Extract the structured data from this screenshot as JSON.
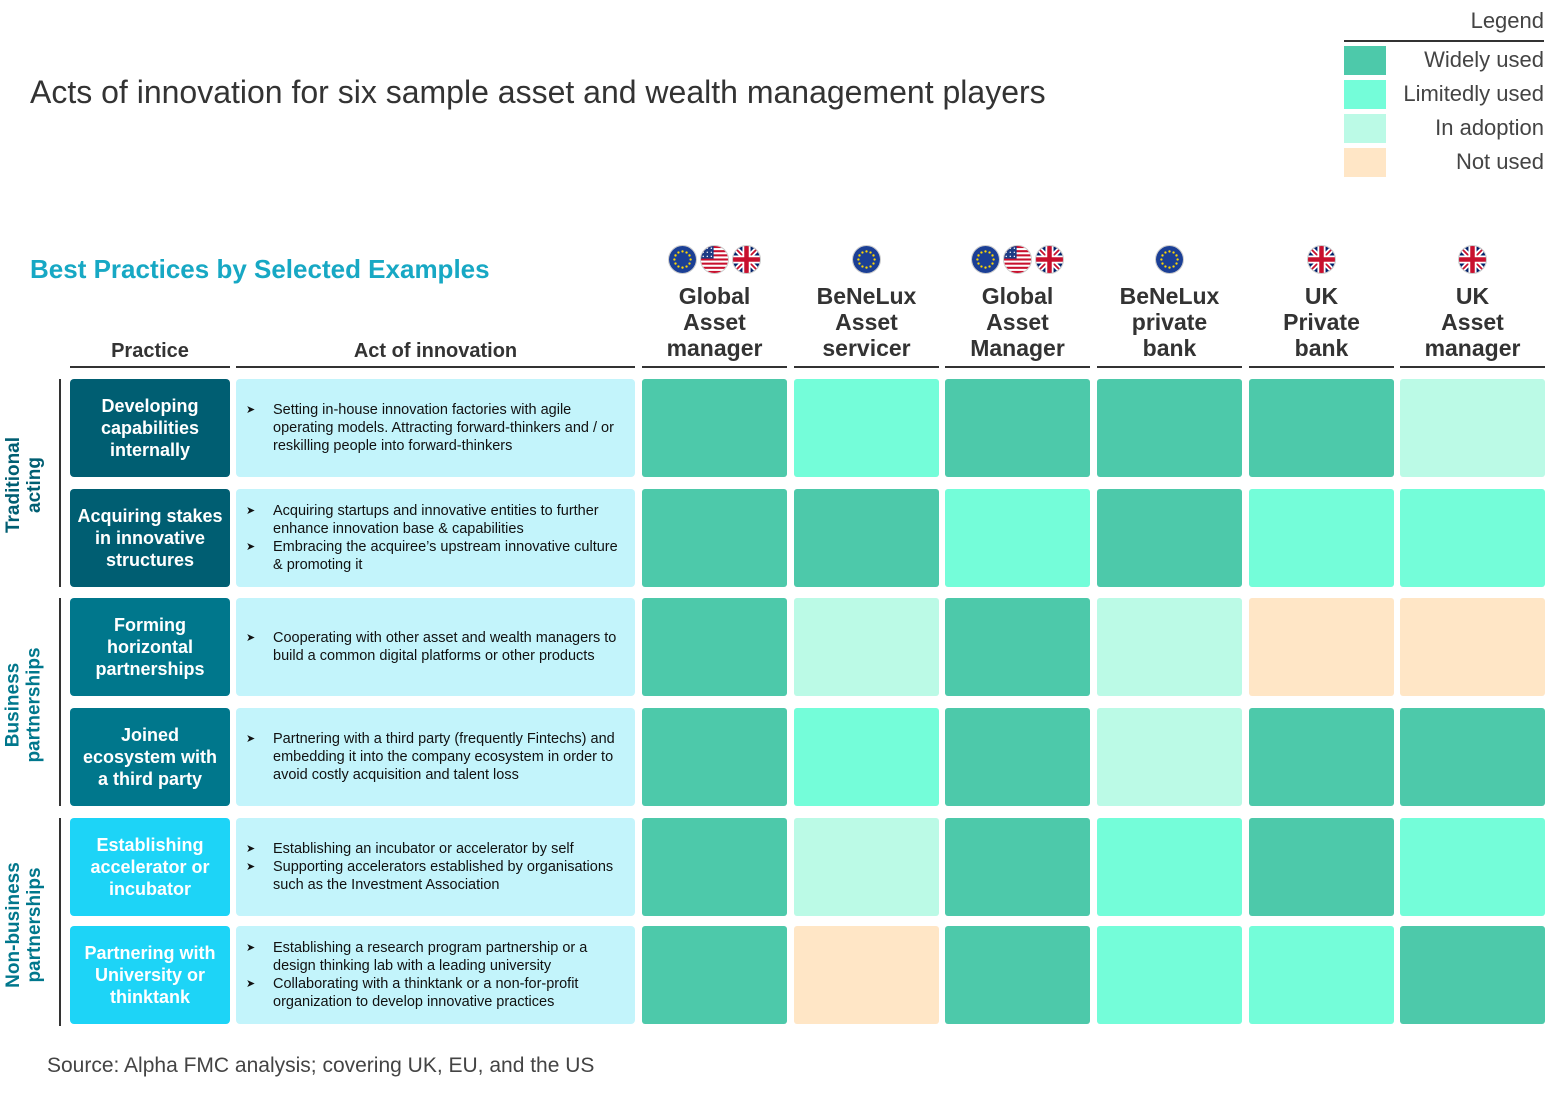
{
  "title": "Acts of innovation for six sample asset and wealth management players",
  "subtitle": "Best Practices by Selected Examples",
  "legend": {
    "title": "Legend",
    "items": [
      {
        "key": "widely",
        "label": "Widely used",
        "color": "#4DC9AA"
      },
      {
        "key": "limited",
        "label": "Limitedly used",
        "color": "#74FDD9"
      },
      {
        "key": "adoption",
        "label": "In adoption",
        "color": "#BBFAE6"
      },
      {
        "key": "notused",
        "label": "Not used",
        "color": "#FFE6C6"
      }
    ]
  },
  "columns": {
    "practice": "Practice",
    "act": "Act of innovation"
  },
  "players": [
    {
      "name": "Global Asset manager",
      "lines": [
        "Global",
        "Asset",
        "manager"
      ],
      "flags": [
        "eu-flag-icon",
        "us-flag-icon",
        "uk-flag-icon"
      ]
    },
    {
      "name": "BeNeLux Asset servicer",
      "lines": [
        "BeNeLux",
        "Asset",
        "servicer"
      ],
      "flags": [
        "eu-flag-icon"
      ]
    },
    {
      "name": "Global Asset Manager",
      "lines": [
        "Global",
        "Asset",
        "Manager"
      ],
      "flags": [
        "eu-flag-icon",
        "us-flag-icon",
        "uk-flag-icon"
      ]
    },
    {
      "name": "BeNeLux private bank",
      "lines": [
        "BeNeLux",
        "private",
        "bank"
      ],
      "flags": [
        "eu-flag-icon"
      ]
    },
    {
      "name": "UK Private bank",
      "lines": [
        "UK",
        "Private",
        "bank"
      ],
      "flags": [
        "uk-flag-icon"
      ]
    },
    {
      "name": "UK Asset manager",
      "lines": [
        "UK",
        "Asset",
        "manager"
      ],
      "flags": [
        "uk-flag-icon"
      ]
    }
  ],
  "groups": [
    {
      "label_lines": [
        "Traditional",
        "acting"
      ],
      "color": "#005E72"
    },
    {
      "label_lines": [
        "Business",
        "partnerships"
      ],
      "color": "#00778C"
    },
    {
      "label_lines": [
        "Non-business",
        "partnerships"
      ],
      "color": "#1DD4F7"
    }
  ],
  "rows": [
    {
      "group": 0,
      "practice": "Developing capabilities internally",
      "practice_color": "#005E72",
      "acts": [
        "Setting in-house innovation factories with agile operating models. Attracting forward-thinkers and / or reskilling people into forward-thinkers"
      ]
    },
    {
      "group": 0,
      "practice": "Acquiring stakes in innovative structures",
      "practice_color": "#005E72",
      "acts": [
        "Acquiring startups and innovative entities to further enhance innovation base & capabilities",
        "Embracing the acquiree’s upstream innovative culture & promoting it"
      ]
    },
    {
      "group": 1,
      "practice": "Forming horizontal partnerships",
      "practice_color": "#00778C",
      "acts": [
        "Cooperating with other asset and wealth managers to build a common digital platforms or other products"
      ]
    },
    {
      "group": 1,
      "practice": "Joined ecosystem with a third party",
      "practice_color": "#00778C",
      "acts": [
        "Partnering with a third party (frequently Fintechs) and embedding it into the company ecosystem in order to avoid costly acquisition and talent loss"
      ]
    },
    {
      "group": 2,
      "practice": "Establishing accelerator or incubator",
      "practice_color": "#1DD4F7",
      "acts": [
        "Establishing an incubator or accelerator by self",
        "Supporting accelerators established by organisations such as the Investment Association"
      ]
    },
    {
      "group": 2,
      "practice": "Partnering with University or thinktank",
      "practice_color": "#1DD4F7",
      "acts": [
        "Establishing a research program partnership or a design thinking lab with a leading university",
        "Collaborating with a thinktank or a non-for-profit organization to develop innovative practices"
      ]
    }
  ],
  "chart_data": {
    "type": "heatmap",
    "title": "Acts of innovation for six sample asset and wealth management players",
    "x": [
      "Global Asset manager",
      "BeNeLux Asset servicer",
      "Global Asset Manager",
      "BeNeLux private bank",
      "UK Private bank",
      "UK Asset manager"
    ],
    "y": [
      "Developing capabilities internally",
      "Acquiring stakes in innovative structures",
      "Forming horizontal partnerships",
      "Joined ecosystem with a third party",
      "Establishing accelerator or incubator",
      "Partnering with University or thinktank"
    ],
    "categories": [
      "Widely used",
      "Limitedly used",
      "In adoption",
      "Not used"
    ],
    "values": [
      [
        "Widely used",
        "Limitedly used",
        "Widely used",
        "Widely used",
        "Widely used",
        "In adoption"
      ],
      [
        "Widely used",
        "Widely used",
        "Limitedly used",
        "Widely used",
        "Limitedly used",
        "Limitedly used"
      ],
      [
        "Widely used",
        "In adoption",
        "Widely used",
        "In adoption",
        "Not used",
        "Not used"
      ],
      [
        "Widely used",
        "Limitedly used",
        "Widely used",
        "In adoption",
        "Widely used",
        "Widely used"
      ],
      [
        "Widely used",
        "In adoption",
        "Widely used",
        "Limitedly used",
        "Widely used",
        "Limitedly used"
      ],
      [
        "Widely used",
        "Not used",
        "Widely used",
        "Limitedly used",
        "Limitedly used",
        "Widely used"
      ]
    ]
  },
  "source": "Source: Alpha FMC analysis; covering UK, EU, and the US"
}
